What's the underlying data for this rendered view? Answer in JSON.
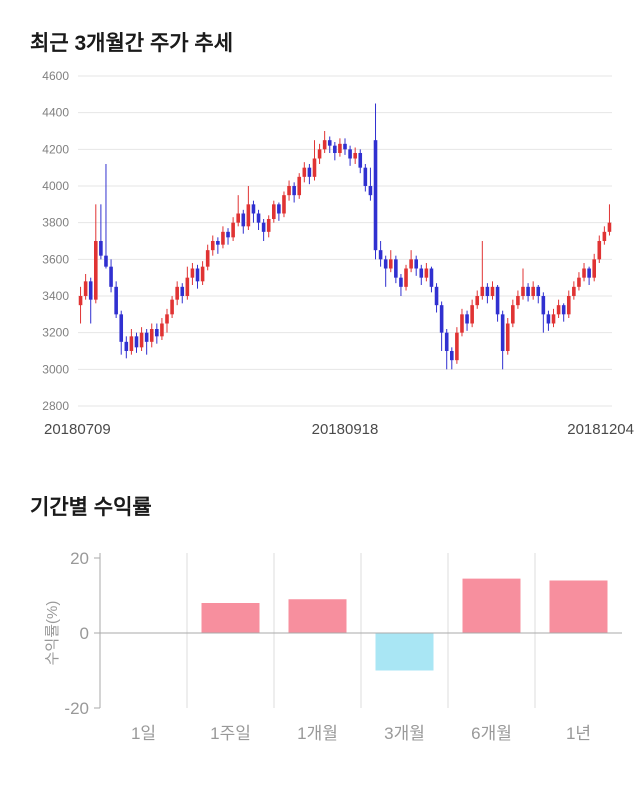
{
  "page": {
    "background": "#ffffff"
  },
  "chart_data": [
    {
      "type": "candlestick",
      "title": "최근 3개월간 주가 추세",
      "ylim": [
        2800,
        4600
      ],
      "ytick_step": 200,
      "ytick_labels": [
        "2800",
        "3000",
        "3200",
        "3400",
        "3600",
        "3800",
        "4000",
        "4200",
        "4400",
        "4600"
      ],
      "x_labels": [
        "20180709",
        "20180918",
        "20181204"
      ],
      "grid": true,
      "up_color": "#e03333",
      "down_color": "#3030d0",
      "grid_color": "#e6e6e6",
      "axis_text_color": "#808080",
      "xlabel_text_color": "#4a4a4a",
      "candles": [
        [
          3350,
          3450,
          3250,
          3400
        ],
        [
          3400,
          3520,
          3380,
          3480
        ],
        [
          3480,
          3500,
          3250,
          3380
        ],
        [
          3380,
          3900,
          3360,
          3700
        ],
        [
          3700,
          3900,
          3600,
          3620
        ],
        [
          3620,
          4120,
          3550,
          3560
        ],
        [
          3560,
          3600,
          3420,
          3450
        ],
        [
          3450,
          3480,
          3280,
          3300
        ],
        [
          3300,
          3320,
          3080,
          3150
        ],
        [
          3150,
          3180,
          3060,
          3100
        ],
        [
          3100,
          3220,
          3080,
          3180
        ],
        [
          3180,
          3200,
          3090,
          3120
        ],
        [
          3120,
          3230,
          3100,
          3200
        ],
        [
          3200,
          3220,
          3080,
          3150
        ],
        [
          3150,
          3250,
          3120,
          3220
        ],
        [
          3220,
          3250,
          3140,
          3180
        ],
        [
          3180,
          3280,
          3160,
          3250
        ],
        [
          3250,
          3330,
          3200,
          3300
        ],
        [
          3300,
          3400,
          3280,
          3380
        ],
        [
          3380,
          3480,
          3350,
          3450
        ],
        [
          3450,
          3470,
          3360,
          3400
        ],
        [
          3400,
          3560,
          3380,
          3500
        ],
        [
          3500,
          3580,
          3460,
          3550
        ],
        [
          3550,
          3570,
          3440,
          3480
        ],
        [
          3480,
          3590,
          3460,
          3560
        ],
        [
          3560,
          3680,
          3540,
          3650
        ],
        [
          3650,
          3730,
          3620,
          3700
        ],
        [
          3700,
          3720,
          3630,
          3680
        ],
        [
          3680,
          3780,
          3660,
          3750
        ],
        [
          3750,
          3770,
          3680,
          3720
        ],
        [
          3720,
          3830,
          3700,
          3800
        ],
        [
          3800,
          3950,
          3780,
          3850
        ],
        [
          3850,
          3870,
          3740,
          3780
        ],
        [
          3780,
          4000,
          3760,
          3900
        ],
        [
          3900,
          3920,
          3800,
          3850
        ],
        [
          3850,
          3870,
          3760,
          3800
        ],
        [
          3800,
          3820,
          3700,
          3750
        ],
        [
          3750,
          3840,
          3720,
          3820
        ],
        [
          3820,
          3920,
          3800,
          3900
        ],
        [
          3900,
          3910,
          3810,
          3850
        ],
        [
          3850,
          3970,
          3830,
          3950
        ],
        [
          3950,
          4030,
          3920,
          4000
        ],
        [
          4000,
          4020,
          3910,
          3950
        ],
        [
          3950,
          4070,
          3930,
          4050
        ],
        [
          4050,
          4130,
          4020,
          4100
        ],
        [
          4100,
          4120,
          4010,
          4050
        ],
        [
          4050,
          4250,
          4030,
          4150
        ],
        [
          4150,
          4230,
          4120,
          4200
        ],
        [
          4200,
          4300,
          4180,
          4250
        ],
        [
          4250,
          4270,
          4180,
          4220
        ],
        [
          4220,
          4240,
          4140,
          4180
        ],
        [
          4180,
          4260,
          4160,
          4230
        ],
        [
          4230,
          4260,
          4170,
          4200
        ],
        [
          4200,
          4220,
          4110,
          4150
        ],
        [
          4150,
          4210,
          4120,
          4180
        ],
        [
          4180,
          4200,
          4070,
          4100
        ],
        [
          4100,
          4120,
          3970,
          4000
        ],
        [
          4000,
          4100,
          3920,
          3950
        ],
        [
          4250,
          4450,
          3600,
          3650
        ],
        [
          3650,
          3700,
          3560,
          3600
        ],
        [
          3600,
          3620,
          3450,
          3550
        ],
        [
          3550,
          3650,
          3530,
          3600
        ],
        [
          3600,
          3620,
          3470,
          3500
        ],
        [
          3500,
          3520,
          3400,
          3450
        ],
        [
          3450,
          3570,
          3430,
          3550
        ],
        [
          3550,
          3650,
          3530,
          3600
        ],
        [
          3600,
          3620,
          3510,
          3550
        ],
        [
          3550,
          3570,
          3460,
          3500
        ],
        [
          3500,
          3580,
          3480,
          3550
        ],
        [
          3550,
          3560,
          3420,
          3450
        ],
        [
          3450,
          3470,
          3310,
          3350
        ],
        [
          3350,
          3370,
          3100,
          3200
        ],
        [
          3200,
          3220,
          3000,
          3100
        ],
        [
          3100,
          3120,
          3000,
          3050
        ],
        [
          3050,
          3230,
          3030,
          3200
        ],
        [
          3200,
          3330,
          3180,
          3300
        ],
        [
          3300,
          3320,
          3210,
          3250
        ],
        [
          3250,
          3380,
          3230,
          3350
        ],
        [
          3350,
          3430,
          3330,
          3400
        ],
        [
          3400,
          3700,
          3380,
          3450
        ],
        [
          3450,
          3470,
          3360,
          3400
        ],
        [
          3400,
          3480,
          3380,
          3450
        ],
        [
          3450,
          3460,
          3260,
          3300
        ],
        [
          3300,
          3320,
          3000,
          3100
        ],
        [
          3100,
          3280,
          3080,
          3250
        ],
        [
          3250,
          3380,
          3230,
          3350
        ],
        [
          3350,
          3430,
          3330,
          3400
        ],
        [
          3400,
          3550,
          3380,
          3450
        ],
        [
          3450,
          3470,
          3370,
          3400
        ],
        [
          3400,
          3480,
          3380,
          3450
        ],
        [
          3450,
          3460,
          3360,
          3400
        ],
        [
          3400,
          3420,
          3200,
          3300
        ],
        [
          3300,
          3320,
          3210,
          3250
        ],
        [
          3250,
          3330,
          3230,
          3300
        ],
        [
          3300,
          3380,
          3280,
          3350
        ],
        [
          3350,
          3360,
          3260,
          3300
        ],
        [
          3300,
          3430,
          3280,
          3400
        ],
        [
          3400,
          3480,
          3380,
          3450
        ],
        [
          3450,
          3530,
          3430,
          3500
        ],
        [
          3500,
          3580,
          3480,
          3550
        ],
        [
          3550,
          3560,
          3460,
          3500
        ],
        [
          3500,
          3630,
          3480,
          3600
        ],
        [
          3600,
          3730,
          3580,
          3700
        ],
        [
          3700,
          3780,
          3680,
          3750
        ],
        [
          3750,
          3900,
          3730,
          3800
        ]
      ]
    },
    {
      "type": "bar",
      "title": "기간별 수익률",
      "categories": [
        "1일",
        "1주일",
        "1개월",
        "3개월",
        "6개월",
        "1년"
      ],
      "values": [
        0,
        8,
        9,
        -10,
        14.5,
        14
      ],
      "ylabel": "수익률(%)",
      "ylim": [
        -20,
        20
      ],
      "yticks": [
        20,
        0,
        -20
      ],
      "grid": true,
      "positive_color": "#f78f9e",
      "negative_color": "#a9e6f4",
      "axis_color": "#aaaaaa",
      "grid_color": "#dddddd",
      "label_color": "#999999"
    }
  ]
}
